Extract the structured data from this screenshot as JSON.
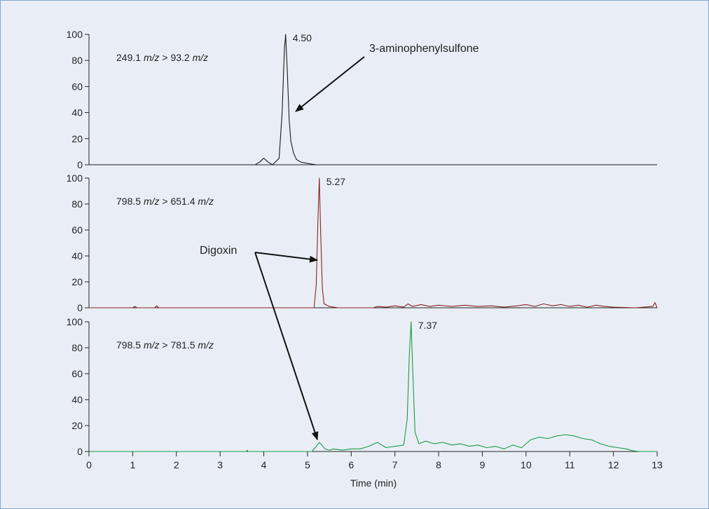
{
  "chart_data": {
    "type": "line",
    "xlabel": "Time (min)",
    "xlim": [
      0,
      13
    ],
    "x_ticks": [
      "0",
      "1",
      "2",
      "3",
      "4",
      "5",
      "6",
      "7",
      "8",
      "9",
      "10",
      "11",
      "12",
      "13"
    ],
    "y_ticks": [
      "0",
      "20",
      "40",
      "60",
      "80",
      "100"
    ],
    "ylim": [
      0,
      100
    ],
    "panels": [
      {
        "color": "#1a1a1a",
        "transition_prefix": "249.1 ",
        "transition_unit1": "m/z",
        "transition_mid": " > 93.2 ",
        "transition_unit2": "m/z",
        "peak_label": "4.50",
        "peak_time": 4.5,
        "series": [
          {
            "x": [
              0,
              3.8,
              3.9,
              4.0,
              4.1,
              4.2,
              4.35,
              4.42,
              4.47,
              4.5,
              4.54,
              4.58,
              4.62,
              4.68,
              4.75,
              4.85,
              5.0,
              5.2,
              13
            ],
            "y": [
              0,
              0,
              2,
              5,
              2,
              0,
              5,
              40,
              88,
              100,
              70,
              35,
              18,
              9,
              4,
              2,
              1,
              0,
              0
            ]
          }
        ]
      },
      {
        "color": "#8b2222",
        "transition_prefix": "798.5 ",
        "transition_unit1": "m/z",
        "transition_mid": " > 651.4 ",
        "transition_unit2": "m/z",
        "peak_label": "5.27",
        "peak_time": 5.27,
        "series": [
          {
            "x": [
              0,
              1.0,
              1.05,
              1.1,
              1.5,
              1.55,
              1.6,
              5.15,
              5.2,
              5.24,
              5.27,
              5.3,
              5.34,
              5.38,
              5.5,
              5.7,
              6.5,
              6.6,
              6.8,
              7.0,
              7.2,
              7.3,
              7.4,
              7.6,
              7.8,
              8.0,
              8.3,
              8.6,
              8.9,
              9.2,
              9.5,
              9.8,
              10.0,
              10.2,
              10.4,
              10.6,
              10.8,
              11.0,
              11.2,
              11.4,
              11.6,
              11.8,
              12.0,
              12.5,
              12.9,
              12.95,
              13.0
            ],
            "y": [
              0,
              0,
              1,
              0,
              0,
              1.5,
              0,
              0,
              18,
              70,
              100,
              60,
              15,
              3,
              1,
              0,
              0,
              1,
              0.5,
              1.5,
              0.5,
              3,
              1,
              2.5,
              1,
              2,
              1,
              2,
              1,
              1.5,
              0.5,
              1.5,
              2.5,
              1,
              3,
              1.5,
              2.5,
              1,
              2,
              0.5,
              2,
              1,
              0.5,
              0,
              1,
              4,
              0
            ]
          }
        ]
      },
      {
        "color": "#1a9a4a",
        "transition_prefix": "798.5 ",
        "transition_unit1": "m/z",
        "transition_mid": " > 781.5 ",
        "transition_unit2": "m/z",
        "peak_label": "7.37",
        "peak_time": 7.37,
        "series": [
          {
            "x": [
              0,
              3.6,
              3.62,
              3.64,
              5.1,
              5.2,
              5.27,
              5.33,
              5.4,
              5.5,
              5.6,
              5.8,
              6.0,
              6.2,
              6.4,
              6.6,
              6.7,
              6.8,
              7.0,
              7.2,
              7.28,
              7.33,
              7.37,
              7.41,
              7.46,
              7.55,
              7.7,
              7.9,
              8.1,
              8.3,
              8.5,
              8.7,
              8.9,
              9.1,
              9.3,
              9.5,
              9.7,
              9.9,
              10.1,
              10.3,
              10.5,
              10.7,
              10.9,
              11.1,
              11.3,
              11.5,
              11.7,
              11.9,
              12.1,
              12.3,
              12.45,
              12.6,
              13.0
            ],
            "y": [
              0,
              0,
              1,
              0,
              0,
              4,
              7,
              5,
              2,
              1,
              2,
              1,
              2,
              2,
              4,
              7,
              5,
              3,
              4,
              5,
              25,
              75,
              100,
              60,
              15,
              6,
              8,
              6,
              7,
              5,
              6,
              4,
              5,
              3,
              4,
              2,
              5,
              3,
              9,
              11,
              10,
              12,
              13,
              12,
              10,
              9,
              6,
              4,
              3,
              2,
              0.5,
              0,
              0
            ]
          }
        ]
      }
    ],
    "annotations": [
      {
        "text": "3-aminophenylsulfone"
      },
      {
        "text": "Digoxin"
      }
    ]
  }
}
